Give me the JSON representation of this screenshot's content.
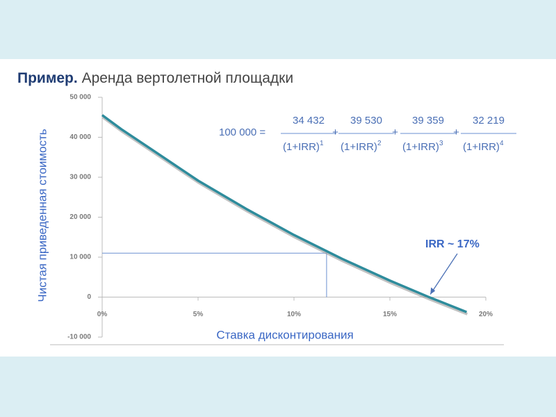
{
  "chart_data": {
    "type": "line",
    "title": {
      "bold": "Пример.",
      "rest": "Аренда вертолетной площадки"
    },
    "x_label": "Ставка дисконтирования",
    "y_label": "Чистая приведенная стоимость",
    "x": [
      0,
      1,
      2.5,
      5,
      7.5,
      10,
      12.5,
      15,
      17,
      19
    ],
    "series": [
      {
        "color": "#2e8c9c",
        "values": [
          45540,
          42005,
          37200,
          29154,
          22100,
          15548,
          9600,
          4131,
          75,
          -3729
        ]
      }
    ],
    "xlim": [
      0,
      20
    ],
    "xticks": [
      {
        "value": 0,
        "label": "0%"
      },
      {
        "value": 5,
        "label": "5%"
      },
      {
        "value": 10,
        "label": "10%"
      },
      {
        "value": 15,
        "label": "15%"
      },
      {
        "value": 20,
        "label": "20%"
      }
    ],
    "ylim": [
      -10000,
      50000
    ],
    "yticks": [
      {
        "value": -10000,
        "label": "-10 000"
      },
      0,
      {
        "value": 10000,
        "label": "10 000"
      },
      {
        "value": 20000,
        "label": "20 000"
      },
      {
        "value": 30000,
        "label": "30 000"
      },
      {
        "value": 40000,
        "label": "40 000"
      },
      {
        "value": 50000,
        "label": "50 000"
      }
    ],
    "marker": {
      "x": 11.7,
      "y": 11000
    },
    "annotation": "IRR ~ 17%",
    "annotation_target": {
      "x": 17,
      "y": 0
    },
    "formula": {
      "lhs": "100 000 =",
      "terms": [
        {
          "numerator": "34 432",
          "denominator": "(1+IRR)",
          "exponent": 1
        },
        {
          "numerator": "39 530",
          "denominator": "(1+IRR)",
          "exponent": 2
        },
        {
          "numerator": "39 359",
          "denominator": "(1+IRR)",
          "exponent": 3
        },
        {
          "numerator": "32 219",
          "denominator": "(1+IRR)",
          "exponent": 4
        }
      ],
      "operators": [
        "+",
        "+",
        "+"
      ]
    }
  }
}
